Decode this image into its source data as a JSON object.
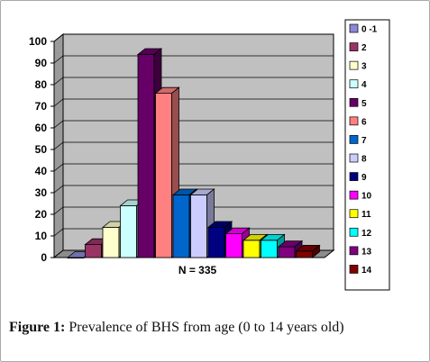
{
  "figure": {
    "label": "Figure 1:",
    "text": " Prevalence of BHS from age (0 to 14 years old)"
  },
  "chart_data": {
    "type": "bar",
    "style": "3d-column",
    "categories": [
      "0 -1",
      "2",
      "3",
      "4",
      "5",
      "6",
      "7",
      "8",
      "9",
      "10",
      "11",
      "12",
      "13",
      "14"
    ],
    "values": [
      0,
      6,
      14,
      24,
      94,
      76,
      29,
      29,
      14,
      11,
      8,
      8,
      5,
      3
    ],
    "colors": [
      "#8a8ad6",
      "#993366",
      "#ffffcc",
      "#ccffff",
      "#660066",
      "#ff8080",
      "#0066cc",
      "#ccccff",
      "#000080",
      "#ff00ff",
      "#ffff00",
      "#00ffff",
      "#800080",
      "#800000"
    ],
    "xlabel": "N = 335",
    "ylim": [
      0,
      100
    ],
    "yticks": [
      0,
      10,
      20,
      30,
      40,
      50,
      60,
      70,
      80,
      90,
      100
    ],
    "grid": true,
    "legend_position": "right"
  }
}
